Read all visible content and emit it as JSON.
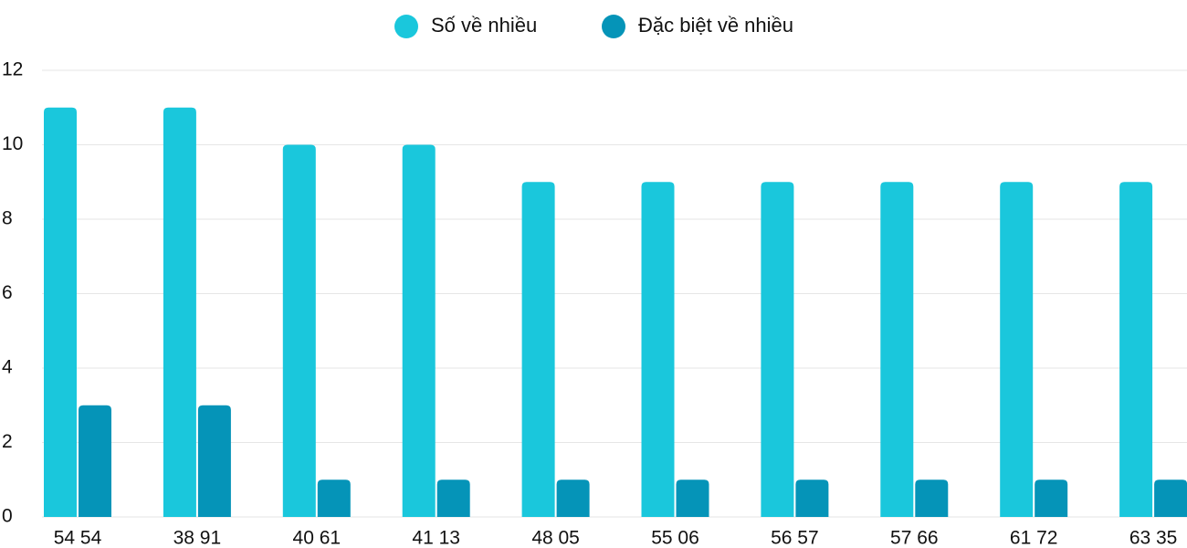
{
  "chart_data": {
    "type": "bar",
    "categories": [
      "54 54",
      "38 91",
      "40 61",
      "41 13",
      "48 05",
      "55 06",
      "56 57",
      "57 66",
      "61 72",
      "63 35"
    ],
    "series": [
      {
        "name": "Số về nhiều",
        "color": "#1ac7dc",
        "values": [
          11,
          11,
          10,
          10,
          9,
          9,
          9,
          9,
          9,
          9
        ]
      },
      {
        "name": "Đặc biệt về nhiều",
        "color": "#0594b8",
        "values": [
          3,
          3,
          1,
          1,
          1,
          1,
          1,
          1,
          1,
          1
        ]
      }
    ],
    "ylim": [
      0,
      12
    ],
    "yticks": [
      0,
      2,
      4,
      6,
      8,
      10,
      12
    ],
    "grid": true
  }
}
